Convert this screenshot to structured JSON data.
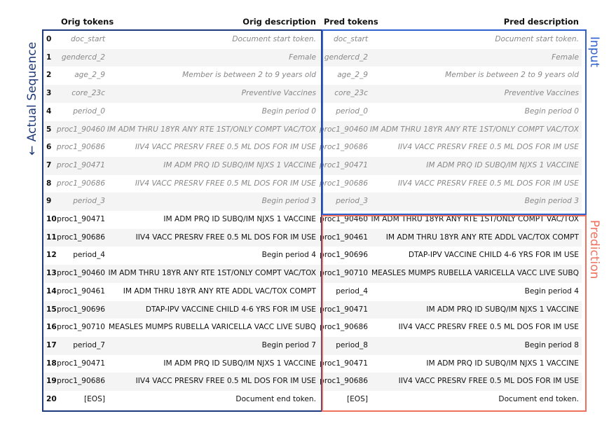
{
  "headers": {
    "orig_tokens": "Orig tokens",
    "orig_description": "Orig description",
    "pred_tokens": "Pred tokens",
    "pred_description": "Pred description"
  },
  "labels": {
    "actual_sequence": "← Actual  Sequence",
    "input": "Input",
    "prediction": "Prediction"
  },
  "colors": {
    "actual": "#1f3a7a",
    "input": "#2f62d0",
    "prediction": "#f0705e"
  },
  "rows": [
    {
      "idx": "0",
      "orig_token": "doc_start",
      "orig_desc": "Document start token.",
      "pred_token": "doc_start",
      "pred_desc": "Document start token."
    },
    {
      "idx": "1",
      "orig_token": "gendercd_2",
      "orig_desc": "Female",
      "pred_token": "gendercd_2",
      "pred_desc": "Female"
    },
    {
      "idx": "2",
      "orig_token": "age_2_9",
      "orig_desc": "Member is between 2 to 9 years old",
      "pred_token": "age_2_9",
      "pred_desc": "Member is between 2 to 9 years old"
    },
    {
      "idx": "3",
      "orig_token": "core_23c",
      "orig_desc": "Preventive Vaccines",
      "pred_token": "core_23c",
      "pred_desc": "Preventive Vaccines"
    },
    {
      "idx": "4",
      "orig_token": "period_0",
      "orig_desc": "Begin period 0",
      "pred_token": "period_0",
      "pred_desc": "Begin period 0"
    },
    {
      "idx": "5",
      "orig_token": "proc1_90460",
      "orig_desc": "IM ADM THRU 18YR ANY RTE 1ST/ONLY COMPT VAC/TOX",
      "pred_token": "proc1_90460",
      "pred_desc": "IM ADM THRU 18YR ANY RTE 1ST/ONLY COMPT VAC/TOX"
    },
    {
      "idx": "6",
      "orig_token": "proc1_90686",
      "orig_desc": "IIV4 VACC PRESRV FREE 0.5 ML DOS FOR IM USE",
      "pred_token": "proc1_90686",
      "pred_desc": "IIV4 VACC PRESRV FREE 0.5 ML DOS FOR IM USE"
    },
    {
      "idx": "7",
      "orig_token": "proc1_90471",
      "orig_desc": "IM ADM PRQ ID SUBQ/IM NJXS 1 VACCINE",
      "pred_token": "proc1_90471",
      "pred_desc": "IM ADM PRQ ID SUBQ/IM NJXS 1 VACCINE"
    },
    {
      "idx": "8",
      "orig_token": "proc1_90686",
      "orig_desc": "IIV4 VACC PRESRV FREE 0.5 ML DOS FOR IM USE",
      "pred_token": "proc1_90686",
      "pred_desc": "IIV4 VACC PRESRV FREE 0.5 ML DOS FOR IM USE"
    },
    {
      "idx": "9",
      "orig_token": "period_3",
      "orig_desc": "Begin period 3",
      "pred_token": "period_3",
      "pred_desc": "Begin period 3"
    },
    {
      "idx": "10",
      "orig_token": "proc1_90471",
      "orig_desc": "IM ADM PRQ ID SUBQ/IM NJXS 1 VACCINE",
      "pred_token": "proc1_90460",
      "pred_desc": "IM ADM THRU 18YR ANY RTE 1ST/ONLY COMPT VAC/TOX"
    },
    {
      "idx": "11",
      "orig_token": "proc1_90686",
      "orig_desc": "IIV4 VACC PRESRV FREE 0.5 ML DOS FOR IM USE",
      "pred_token": "proc1_90461",
      "pred_desc": "IM ADM THRU 18YR ANY RTE ADDL VAC/TOX COMPT"
    },
    {
      "idx": "12",
      "orig_token": "period_4",
      "orig_desc": "Begin period 4",
      "pred_token": "proc1_90696",
      "pred_desc": "DTAP-IPV VACCINE CHILD 4-6 YRS FOR IM USE"
    },
    {
      "idx": "13",
      "orig_token": "proc1_90460",
      "orig_desc": "IM ADM THRU 18YR ANY RTE 1ST/ONLY COMPT VAC/TOX",
      "pred_token": "proc1_90710",
      "pred_desc": "MEASLES MUMPS RUBELLA VARICELLA VACC LIVE SUBQ"
    },
    {
      "idx": "14",
      "orig_token": "proc1_90461",
      "orig_desc": "IM ADM THRU 18YR ANY RTE ADDL VAC/TOX COMPT",
      "pred_token": "period_4",
      "pred_desc": "Begin period 4"
    },
    {
      "idx": "15",
      "orig_token": "proc1_90696",
      "orig_desc": "DTAP-IPV VACCINE CHILD 4-6 YRS FOR IM USE",
      "pred_token": "proc1_90471",
      "pred_desc": "IM ADM PRQ ID SUBQ/IM NJXS 1 VACCINE"
    },
    {
      "idx": "16",
      "orig_token": "proc1_90710",
      "orig_desc": "MEASLES MUMPS RUBELLA VARICELLA VACC LIVE SUBQ",
      "pred_token": "proc1_90686",
      "pred_desc": "IIV4 VACC PRESRV FREE 0.5 ML DOS FOR IM USE"
    },
    {
      "idx": "17",
      "orig_token": "period_7",
      "orig_desc": "Begin period 7",
      "pred_token": "period_8",
      "pred_desc": "Begin period 8"
    },
    {
      "idx": "18",
      "orig_token": "proc1_90471",
      "orig_desc": "IM ADM PRQ ID SUBQ/IM NJXS 1 VACCINE",
      "pred_token": "proc1_90471",
      "pred_desc": "IM ADM PRQ ID SUBQ/IM NJXS 1 VACCINE"
    },
    {
      "idx": "19",
      "orig_token": "proc1_90686",
      "orig_desc": "IIV4 VACC PRESRV FREE 0.5 ML DOS FOR IM USE",
      "pred_token": "proc1_90686",
      "pred_desc": "IIV4 VACC PRESRV FREE 0.5 ML DOS FOR IM USE"
    },
    {
      "idx": "20",
      "orig_token": "[EOS]",
      "orig_desc": "Document end token.",
      "pred_token": "[EOS]",
      "pred_desc": "Document end token."
    }
  ],
  "input_row_count": 10
}
